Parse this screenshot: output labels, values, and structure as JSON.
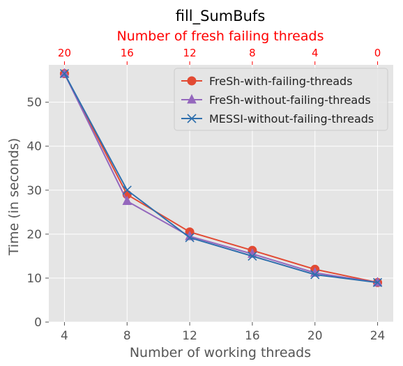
{
  "chart_data": {
    "type": "line",
    "title": "fill_SumBufs",
    "xlabel": "Number of working threads",
    "ylabel": "Time (in seconds)",
    "top_xlabel": "Number of fresh failing threads",
    "x": [
      4,
      8,
      12,
      16,
      20,
      24
    ],
    "x_ticks": [
      4,
      8,
      12,
      16,
      20,
      24
    ],
    "top_x_ticks": [
      20,
      16,
      12,
      8,
      4,
      0
    ],
    "y_ticks": [
      0,
      10,
      20,
      30,
      40,
      50
    ],
    "xlim": [
      3,
      25
    ],
    "ylim": [
      0,
      58.5
    ],
    "grid": true,
    "legend_position": "top-right",
    "series": [
      {
        "name": "FreSh-with-failing-threads",
        "values": [
          56.5,
          29.0,
          20.5,
          16.3,
          12.0,
          9.0
        ],
        "color": "#e24a33",
        "marker": "circle"
      },
      {
        "name": "FreSh-without-failing-threads",
        "values": [
          56.5,
          27.5,
          19.5,
          15.5,
          11.2,
          9.0
        ],
        "color": "#9467bd",
        "marker": "triangle"
      },
      {
        "name": "MESSI-without-failing-threads",
        "values": [
          56.5,
          30.0,
          19.2,
          15.0,
          10.8,
          9.0
        ],
        "color": "#2f6fad",
        "marker": "x"
      }
    ],
    "colors": {
      "plot_background": "#e5e5e5",
      "grid": "#ffffff",
      "text": "#555555",
      "title": "#000000",
      "top_axis": "#ff0000"
    }
  }
}
